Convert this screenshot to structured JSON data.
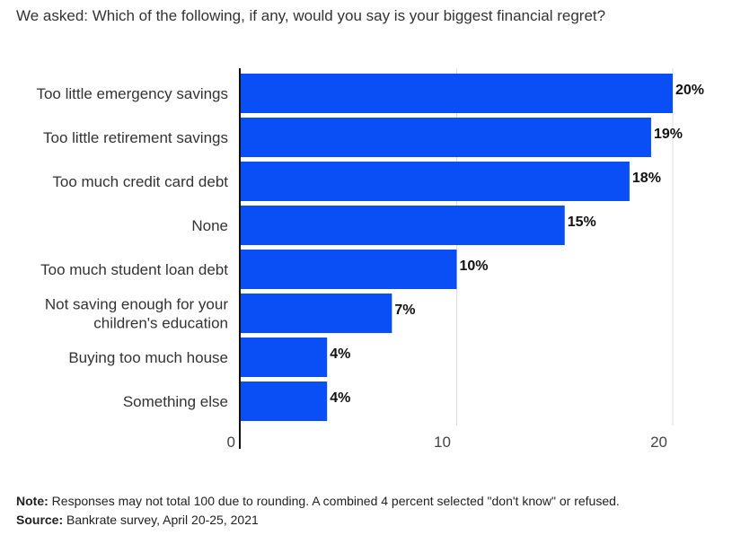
{
  "title": "We asked: Which of the following, if any, would you say is your biggest financial regret?",
  "note": {
    "label": "Note:",
    "text": "Responses may not total 100 due to rounding. A combined 4 percent selected \"don't know\" or refused."
  },
  "source": {
    "label": "Source:",
    "text": "Bankrate survey, April 20-25, 2021"
  },
  "chart_data": {
    "type": "bar",
    "orientation": "horizontal",
    "categories": [
      [
        "Too little emergency savings"
      ],
      [
        "Too little retirement savings"
      ],
      [
        "Too much credit card debt"
      ],
      [
        "None"
      ],
      [
        "Too much student loan debt"
      ],
      [
        "Not saving enough for your",
        "children's education"
      ],
      [
        "Buying too much house"
      ],
      [
        "Something else"
      ]
    ],
    "values": [
      20,
      19,
      18,
      15,
      10,
      7,
      4,
      4
    ],
    "value_labels": [
      "20%",
      "19%",
      "18%",
      "15%",
      "10%",
      "7%",
      "4%",
      "4%"
    ],
    "xlim": [
      0,
      20
    ],
    "xticks": [
      0,
      10,
      20
    ],
    "grid": true,
    "bar_color": "#0a4ef5"
  }
}
